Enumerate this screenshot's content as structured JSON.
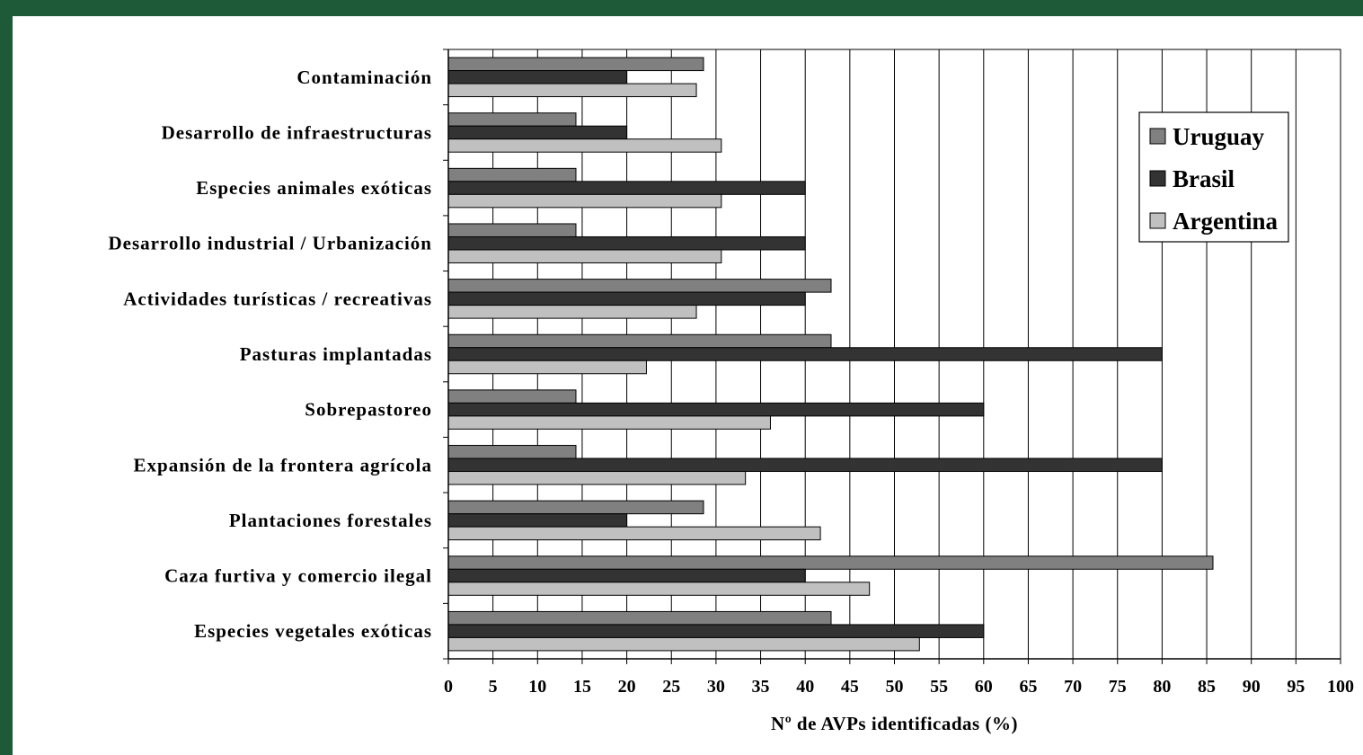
{
  "chart_data": {
    "type": "bar",
    "orientation": "horizontal",
    "categories": [
      "Contaminación",
      "Desarrollo de infraestructuras",
      "Especies animales exóticas",
      "Desarrollo industrial / Urbanización",
      "Actividades turísticas / recreativas",
      "Pasturas implantadas",
      "Sobrepastoreo",
      "Expansión de la frontera agrícola",
      "Plantaciones forestales",
      "Caza furtiva y comercio ilegal",
      "Especies vegetales exóticas"
    ],
    "series": [
      {
        "name": "Uruguay",
        "color": "#808080",
        "values": [
          28.6,
          14.3,
          14.3,
          14.3,
          42.9,
          42.9,
          14.3,
          14.3,
          28.6,
          85.7,
          42.9
        ]
      },
      {
        "name": "Brasil",
        "color": "#333333",
        "values": [
          20,
          20,
          40,
          40,
          40,
          80,
          60,
          80,
          20,
          40,
          60
        ]
      },
      {
        "name": "Argentina",
        "color": "#c0c0c0",
        "values": [
          27.8,
          30.6,
          30.6,
          30.6,
          27.8,
          22.2,
          36.1,
          33.3,
          41.7,
          47.2,
          52.8
        ]
      }
    ],
    "xlabel": "Nº de AVPs identificadas (%)",
    "ylabel": "",
    "xlim": [
      0,
      100
    ],
    "xticks": [
      0,
      5,
      10,
      15,
      20,
      25,
      30,
      35,
      40,
      45,
      50,
      55,
      60,
      65,
      70,
      75,
      80,
      85,
      90,
      95,
      100
    ],
    "grid": "vertical",
    "legend_position": "top-right"
  }
}
